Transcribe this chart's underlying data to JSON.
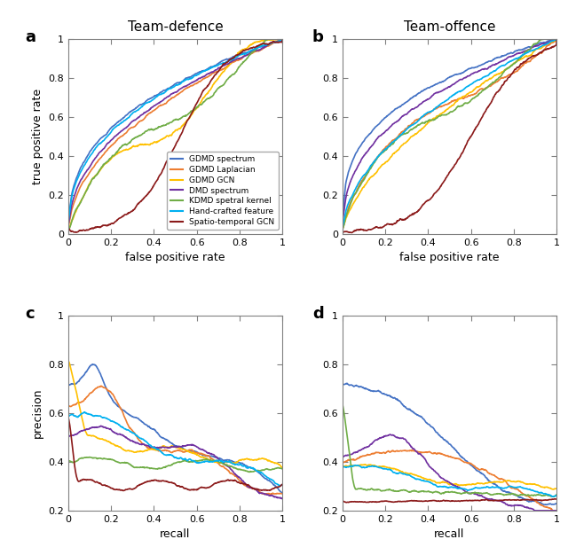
{
  "title_a": "Team-defence",
  "title_b": "Team-offence",
  "label_a": "a",
  "label_b": "b",
  "label_c": "c",
  "label_d": "d",
  "legend_labels": [
    "GDMD spectrum",
    "GDMD Laplacian",
    "GDMD GCN",
    "DMD spectrum",
    "KDMD spetral kernel",
    "Hand-crafted feature",
    "Spatio-temporal GCN"
  ],
  "colors": [
    "#4472C4",
    "#ED7D31",
    "#FFC000",
    "#7030A0",
    "#70AD47",
    "#00B0F0",
    "#8B1A1A"
  ],
  "xlabel_roc": "false positive rate",
  "ylabel_roc": "true positive rate",
  "xlabel_pr": "recall",
  "ylabel_pr": "precision",
  "background_color": "#ffffff",
  "linewidth": 1.2,
  "tick_labels_roc": [
    "0",
    "0.2",
    "0.4",
    "0.6",
    "0.8",
    "1"
  ],
  "tick_labels_pr_y": [
    "0.2",
    "0.4",
    "0.6",
    "0.8",
    "1"
  ],
  "tick_labels_pr_x": [
    "0",
    "0.2",
    "0.4",
    "0.6",
    "0.8",
    "1"
  ]
}
